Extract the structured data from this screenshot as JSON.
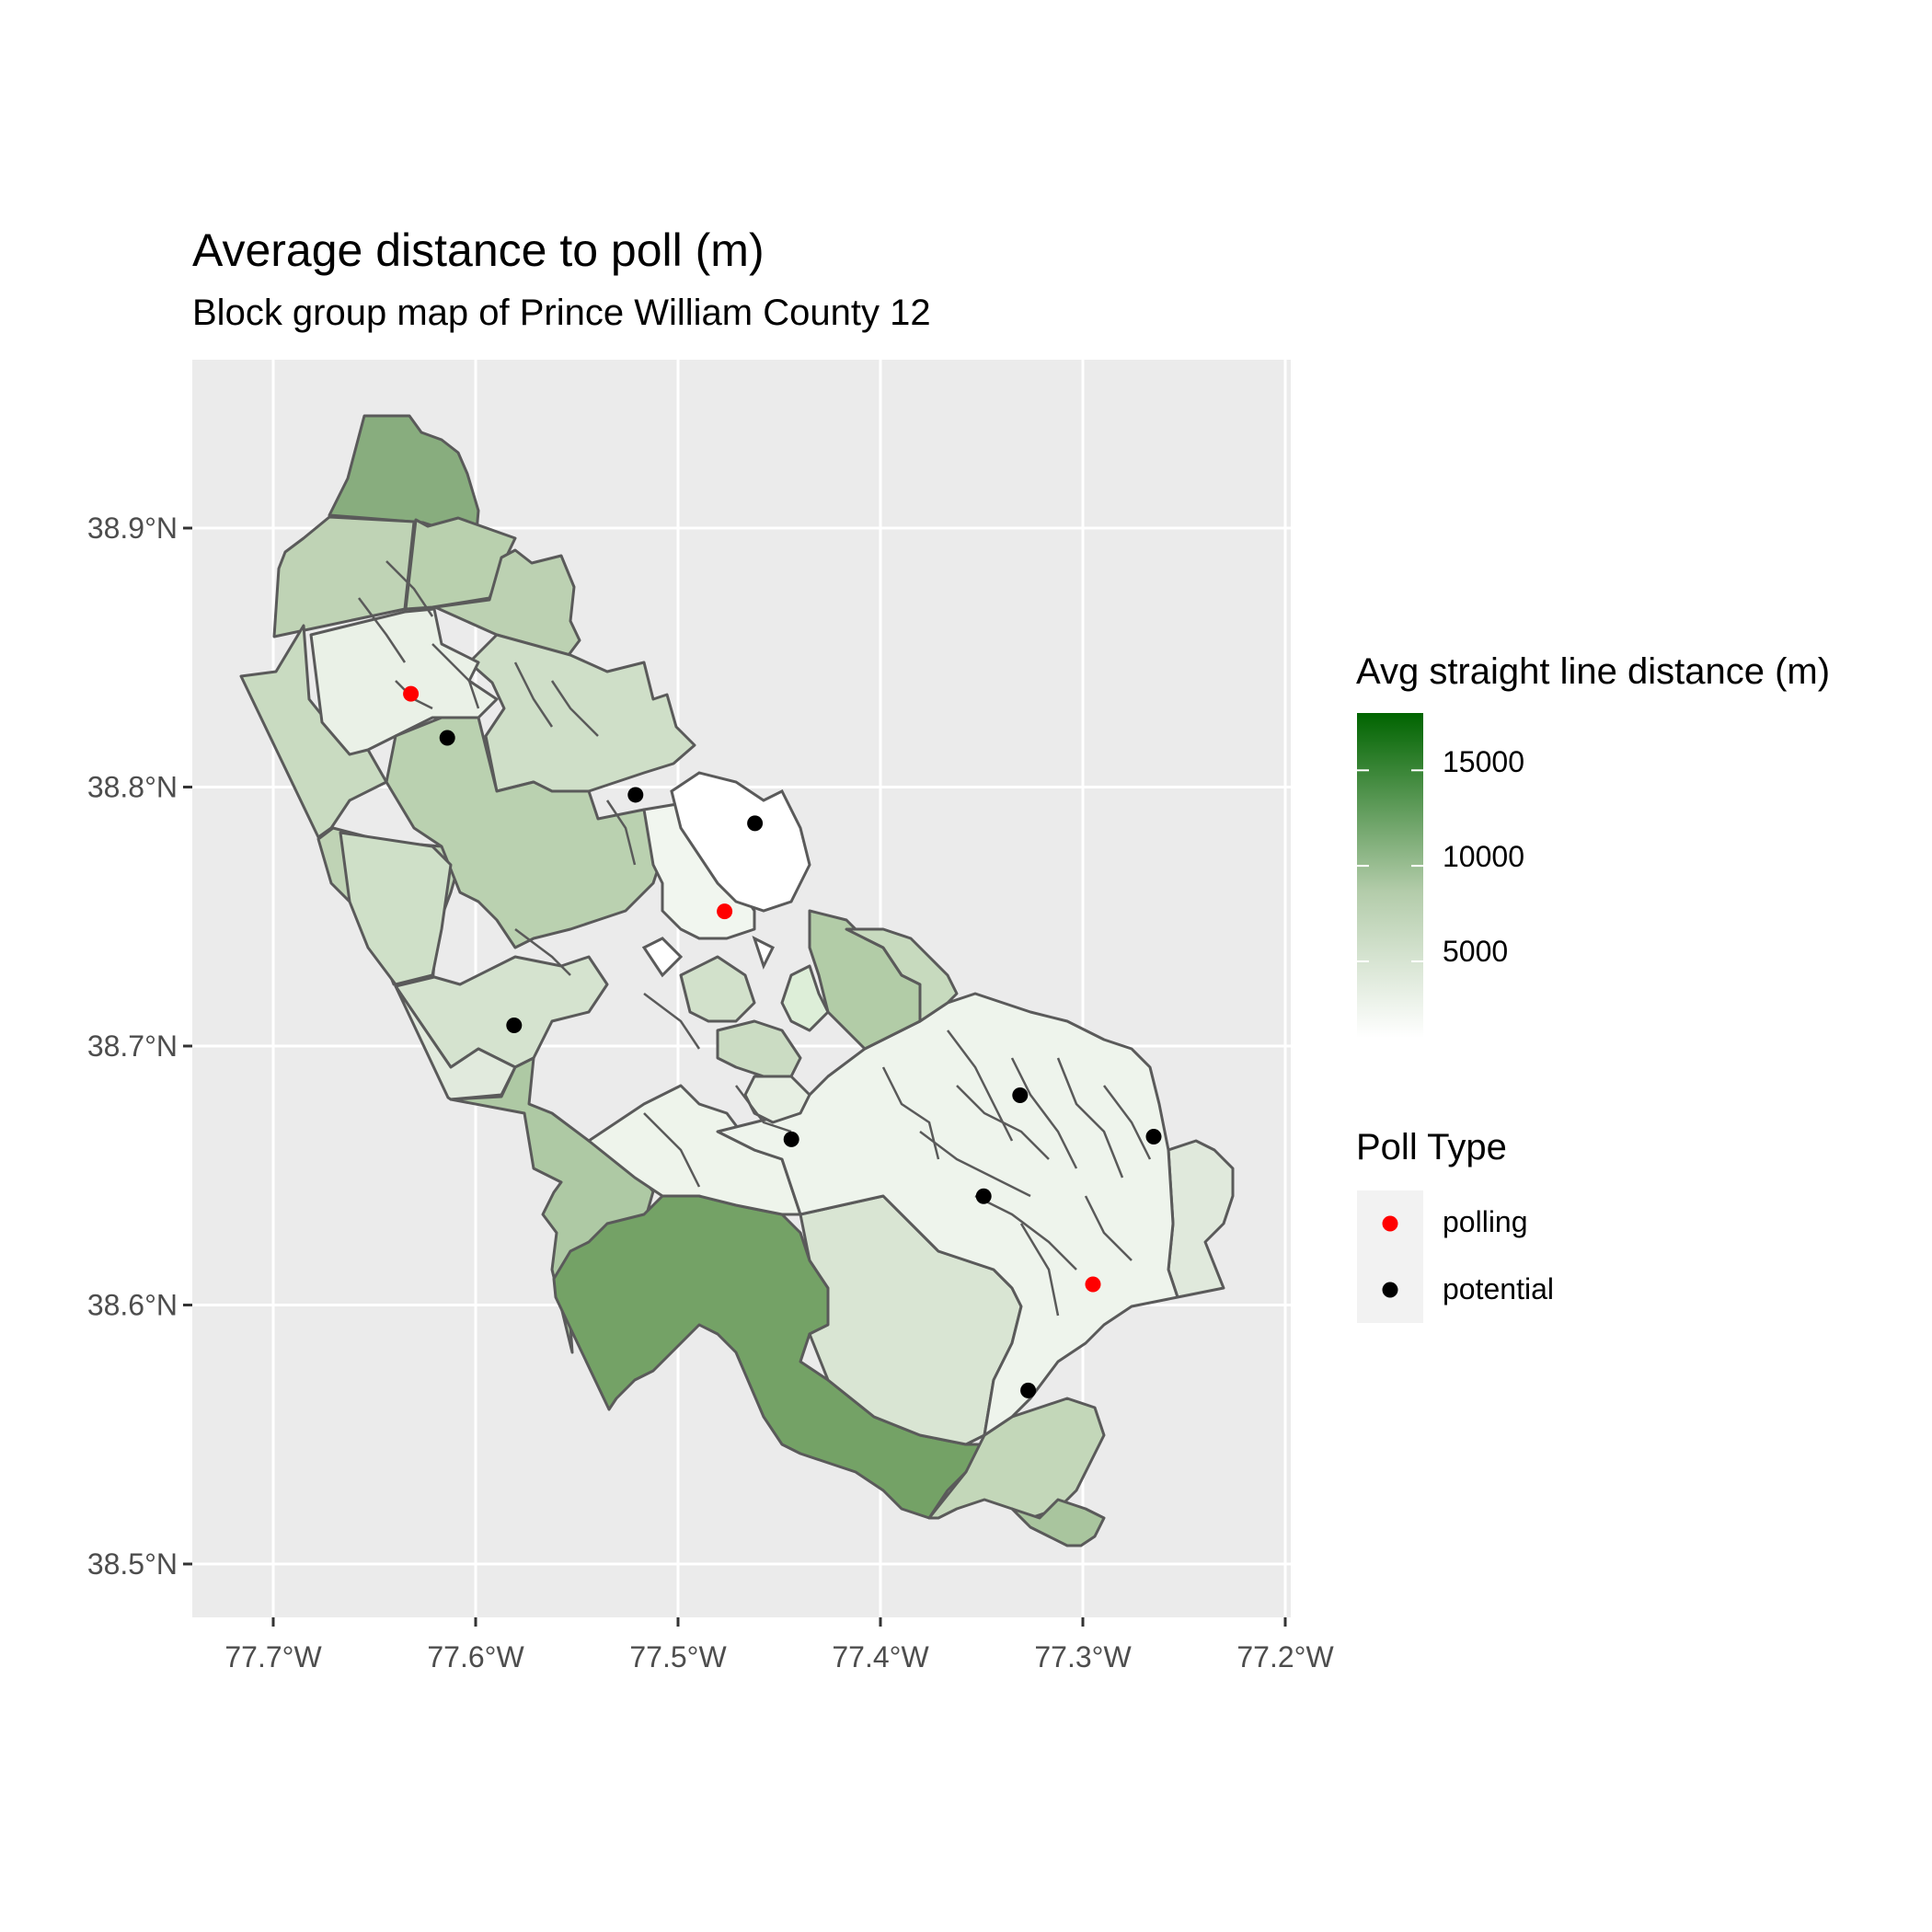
{
  "title": "Average distance to poll (m)",
  "subtitle": "Block group map of Prince William County 12",
  "chart_data": {
    "type": "map",
    "x_axis": {
      "ticks": [
        "77.7°W",
        "77.6°W",
        "77.5°W",
        "77.4°W",
        "77.3°W",
        "77.2°W"
      ],
      "range": [
        -77.74,
        -77.2
      ]
    },
    "y_axis": {
      "ticks": [
        "38.5°N",
        "38.6°N",
        "38.7°N",
        "38.8°N",
        "38.9°N"
      ],
      "range": [
        38.48,
        38.96
      ]
    },
    "grid": true,
    "fill_legend": {
      "title": "Avg straight line distance (m)",
      "breaks": [
        "5000",
        "10000",
        "15000"
      ],
      "range": [
        1000,
        18000
      ],
      "low_color": "#ffffff",
      "high_color": "#006400",
      "placement": "right"
    },
    "shape_legend": {
      "title": "Poll Type",
      "items": [
        {
          "label": "polling",
          "color": "#ff0000"
        },
        {
          "label": "potential",
          "color": "#000000"
        }
      ],
      "placement": "right"
    },
    "points": [
      {
        "type": "polling",
        "lon": -77.632,
        "lat": 38.836
      },
      {
        "type": "potential",
        "lon": -77.614,
        "lat": 38.819
      },
      {
        "type": "potential",
        "lon": -77.521,
        "lat": 38.797
      },
      {
        "type": "potential",
        "lon": -77.462,
        "lat": 38.786
      },
      {
        "type": "polling",
        "lon": -77.477,
        "lat": 38.752
      },
      {
        "type": "potential",
        "lon": -77.581,
        "lat": 38.708
      },
      {
        "type": "potential",
        "lon": -77.331,
        "lat": 38.681
      },
      {
        "type": "potential",
        "lon": -77.444,
        "lat": 38.664
      },
      {
        "type": "potential",
        "lon": -77.265,
        "lat": 38.665
      },
      {
        "type": "potential",
        "lon": -77.349,
        "lat": 38.642
      },
      {
        "type": "polling",
        "lon": -77.295,
        "lat": 38.608
      },
      {
        "type": "potential",
        "lon": -77.327,
        "lat": 38.567
      }
    ]
  }
}
